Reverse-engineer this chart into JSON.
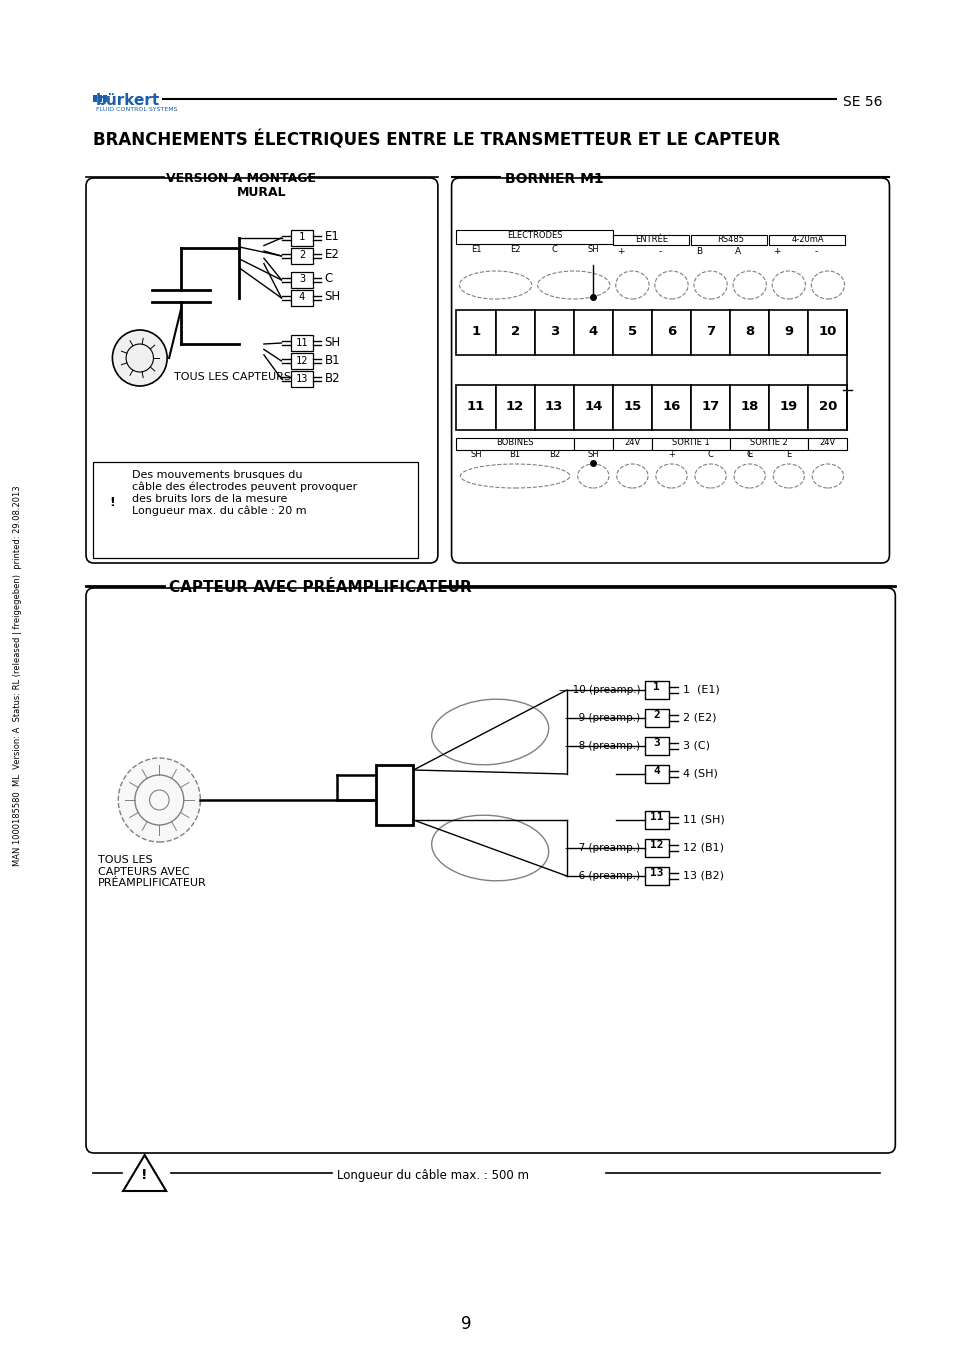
{
  "title": "BRANCHEMENTS ÉLECTRIQUES ENTRE LE TRANSMETTEUR ET LE CAPTEUR",
  "burkert_text": "bürkert",
  "se_text": "SE 56",
  "sidebar_text": "MAN 1000185580  ML  Version: A  Status: RL (released | freigegeben)  printed: 29.08.2013",
  "section1_title_line1": "VERSION A MONTAGE",
  "section1_title_line2": "MURAL",
  "section2_title": "BORNIER M1",
  "section3_title": "CAPTEUR AVEC PRÉAMPLIFICATEUR",
  "warning_text": "Des mouvements brusques du\ncâble des électrodes peuvent provoquer\ndes bruits lors de la mesure\nLongueur max. du câble : 20 m",
  "cable_text": "Longueur du câble max. : 500 m",
  "tous_les": "TOUS LES CAPTEURS",
  "tous_les2": "TOUS LES\nCAPTEURS AVEC\nPRÉAMPLIFICATEUR",
  "bg_color": "#ffffff",
  "page_num": "9"
}
